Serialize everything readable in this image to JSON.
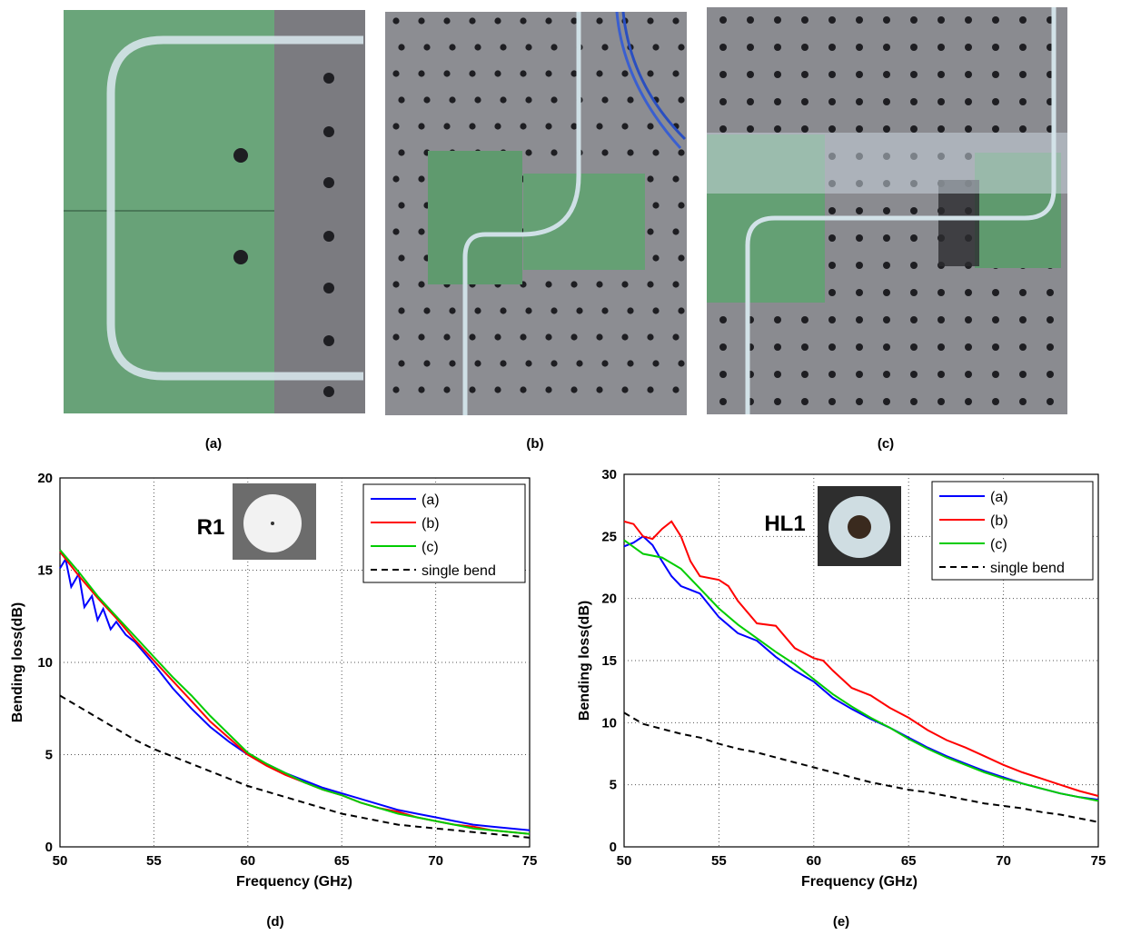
{
  "photos": [
    {
      "label": "(a)"
    },
    {
      "label": "(b)"
    },
    {
      "label": "(c)"
    }
  ],
  "chart_data": [
    {
      "panel_label": "(d)",
      "type": "line",
      "inset_label": "R1",
      "xlabel": "Frequency (GHz)",
      "ylabel": "Bending loss(dB)",
      "xlim": [
        50,
        75
      ],
      "ylim": [
        0,
        20
      ],
      "xticks": [
        50,
        55,
        60,
        65,
        70,
        75
      ],
      "yticks": [
        0,
        5,
        10,
        15,
        20
      ],
      "grid": true,
      "legend_position": "top-right",
      "series": [
        {
          "name": "(a)",
          "color": "#0000ff",
          "style": "solid",
          "x": [
            50,
            50.3,
            50.6,
            51.0,
            51.3,
            51.7,
            52.0,
            52.3,
            52.7,
            53.0,
            53.5,
            54,
            55,
            56,
            57,
            58,
            59,
            60,
            61,
            62,
            63,
            64,
            65,
            66,
            67,
            68,
            69,
            70,
            71,
            72,
            73,
            74,
            75
          ],
          "y": [
            15.1,
            15.6,
            14.1,
            14.8,
            13.0,
            13.6,
            12.3,
            12.9,
            11.8,
            12.2,
            11.5,
            11.1,
            9.9,
            8.6,
            7.5,
            6.5,
            5.7,
            5.0,
            4.5,
            4.0,
            3.6,
            3.2,
            2.9,
            2.6,
            2.3,
            2.0,
            1.8,
            1.6,
            1.4,
            1.2,
            1.1,
            1.0,
            0.9
          ]
        },
        {
          "name": "(b)",
          "color": "#ff0000",
          "style": "solid",
          "x": [
            50,
            51,
            52,
            53,
            54,
            55,
            56,
            57,
            58,
            59,
            60,
            61,
            62,
            63,
            64,
            65,
            66,
            67,
            68,
            69,
            70,
            71,
            72,
            73,
            74,
            75
          ],
          "y": [
            16.0,
            14.7,
            13.5,
            12.4,
            11.2,
            10.1,
            9.0,
            7.9,
            6.8,
            5.9,
            5.0,
            4.4,
            3.9,
            3.5,
            3.1,
            2.8,
            2.4,
            2.1,
            1.9,
            1.6,
            1.4,
            1.2,
            1.1,
            0.9,
            0.8,
            0.7
          ]
        },
        {
          "name": "(c)",
          "color": "#00cc00",
          "style": "solid",
          "x": [
            50,
            51,
            52,
            53,
            54,
            55,
            56,
            57,
            58,
            59,
            60,
            61,
            62,
            63,
            64,
            65,
            66,
            67,
            68,
            69,
            70,
            71,
            72,
            73,
            74,
            75
          ],
          "y": [
            16.1,
            14.9,
            13.6,
            12.5,
            11.4,
            10.3,
            9.2,
            8.2,
            7.1,
            6.1,
            5.1,
            4.5,
            4.0,
            3.5,
            3.1,
            2.8,
            2.4,
            2.1,
            1.8,
            1.6,
            1.4,
            1.2,
            1.0,
            0.9,
            0.8,
            0.7
          ]
        },
        {
          "name": "single bend",
          "color": "#000000",
          "style": "dashed",
          "x": [
            50,
            51,
            52,
            53,
            54,
            55,
            56,
            57,
            58,
            59,
            60,
            61,
            62,
            63,
            64,
            65,
            66,
            67,
            68,
            69,
            70,
            71,
            72,
            73,
            74,
            75
          ],
          "y": [
            8.2,
            7.6,
            7.0,
            6.4,
            5.8,
            5.3,
            4.9,
            4.5,
            4.1,
            3.7,
            3.3,
            3.0,
            2.7,
            2.4,
            2.1,
            1.8,
            1.6,
            1.4,
            1.2,
            1.1,
            1.0,
            0.9,
            0.8,
            0.7,
            0.6,
            0.5
          ]
        }
      ]
    },
    {
      "panel_label": "(e)",
      "type": "line",
      "inset_label": "HL1",
      "xlabel": "Frequency (GHz)",
      "ylabel": "Bending loss(dB)",
      "xlim": [
        50,
        75
      ],
      "ylim": [
        0,
        30
      ],
      "xticks": [
        50,
        55,
        60,
        65,
        70,
        75
      ],
      "yticks": [
        0,
        5,
        10,
        15,
        20,
        25,
        30
      ],
      "grid": true,
      "legend_position": "top-right",
      "series": [
        {
          "name": "(a)",
          "color": "#0000ff",
          "style": "solid",
          "x": [
            50,
            50.5,
            51,
            51.5,
            52,
            52.5,
            53,
            54,
            55,
            56,
            57,
            58,
            59,
            60,
            61,
            62,
            63,
            64,
            65,
            66,
            67,
            68,
            69,
            70,
            71,
            72,
            73,
            74,
            75
          ],
          "y": [
            24.2,
            24.5,
            25.0,
            24.3,
            23.0,
            21.8,
            21.0,
            20.4,
            18.5,
            17.2,
            16.6,
            15.3,
            14.2,
            13.3,
            12.0,
            11.1,
            10.3,
            9.6,
            8.8,
            8.0,
            7.3,
            6.7,
            6.1,
            5.6,
            5.1,
            4.7,
            4.3,
            4.0,
            3.8
          ]
        },
        {
          "name": "(b)",
          "color": "#ff0000",
          "style": "solid",
          "x": [
            50,
            50.5,
            51,
            51.5,
            52,
            52.5,
            53,
            53.5,
            54,
            55,
            55.5,
            56,
            57,
            58,
            59,
            60,
            60.5,
            61,
            62,
            63,
            64,
            65,
            66,
            67,
            68,
            69,
            70,
            71,
            72,
            73,
            74,
            75
          ],
          "y": [
            26.2,
            26.0,
            25.0,
            24.8,
            25.6,
            26.2,
            25.0,
            23.0,
            21.8,
            21.5,
            21.0,
            19.8,
            18.0,
            17.8,
            16.0,
            15.2,
            15.0,
            14.2,
            12.8,
            12.2,
            11.2,
            10.4,
            9.4,
            8.6,
            8.0,
            7.3,
            6.6,
            6.0,
            5.5,
            5.0,
            4.5,
            4.1
          ]
        },
        {
          "name": "(c)",
          "color": "#00cc00",
          "style": "solid",
          "x": [
            50,
            51,
            52,
            53,
            54,
            55,
            56,
            57,
            58,
            59,
            60,
            61,
            62,
            63,
            64,
            65,
            66,
            67,
            68,
            69,
            70,
            71,
            72,
            73,
            74,
            75
          ],
          "y": [
            24.7,
            23.6,
            23.3,
            22.4,
            20.8,
            19.2,
            17.9,
            16.8,
            15.7,
            14.7,
            13.5,
            12.3,
            11.3,
            10.4,
            9.6,
            8.7,
            7.9,
            7.2,
            6.6,
            6.0,
            5.5,
            5.1,
            4.7,
            4.3,
            4.0,
            3.7
          ]
        },
        {
          "name": "single bend",
          "color": "#000000",
          "style": "dashed",
          "x": [
            50,
            51,
            52,
            53,
            54,
            55,
            56,
            57,
            58,
            59,
            60,
            61,
            62,
            63,
            64,
            65,
            66,
            67,
            68,
            69,
            70,
            71,
            72,
            73,
            74,
            75
          ],
          "y": [
            10.8,
            9.9,
            9.5,
            9.1,
            8.8,
            8.3,
            7.9,
            7.6,
            7.2,
            6.8,
            6.4,
            6.0,
            5.6,
            5.2,
            4.9,
            4.6,
            4.4,
            4.1,
            3.8,
            3.5,
            3.3,
            3.1,
            2.8,
            2.6,
            2.3,
            2.0
          ]
        }
      ]
    }
  ]
}
